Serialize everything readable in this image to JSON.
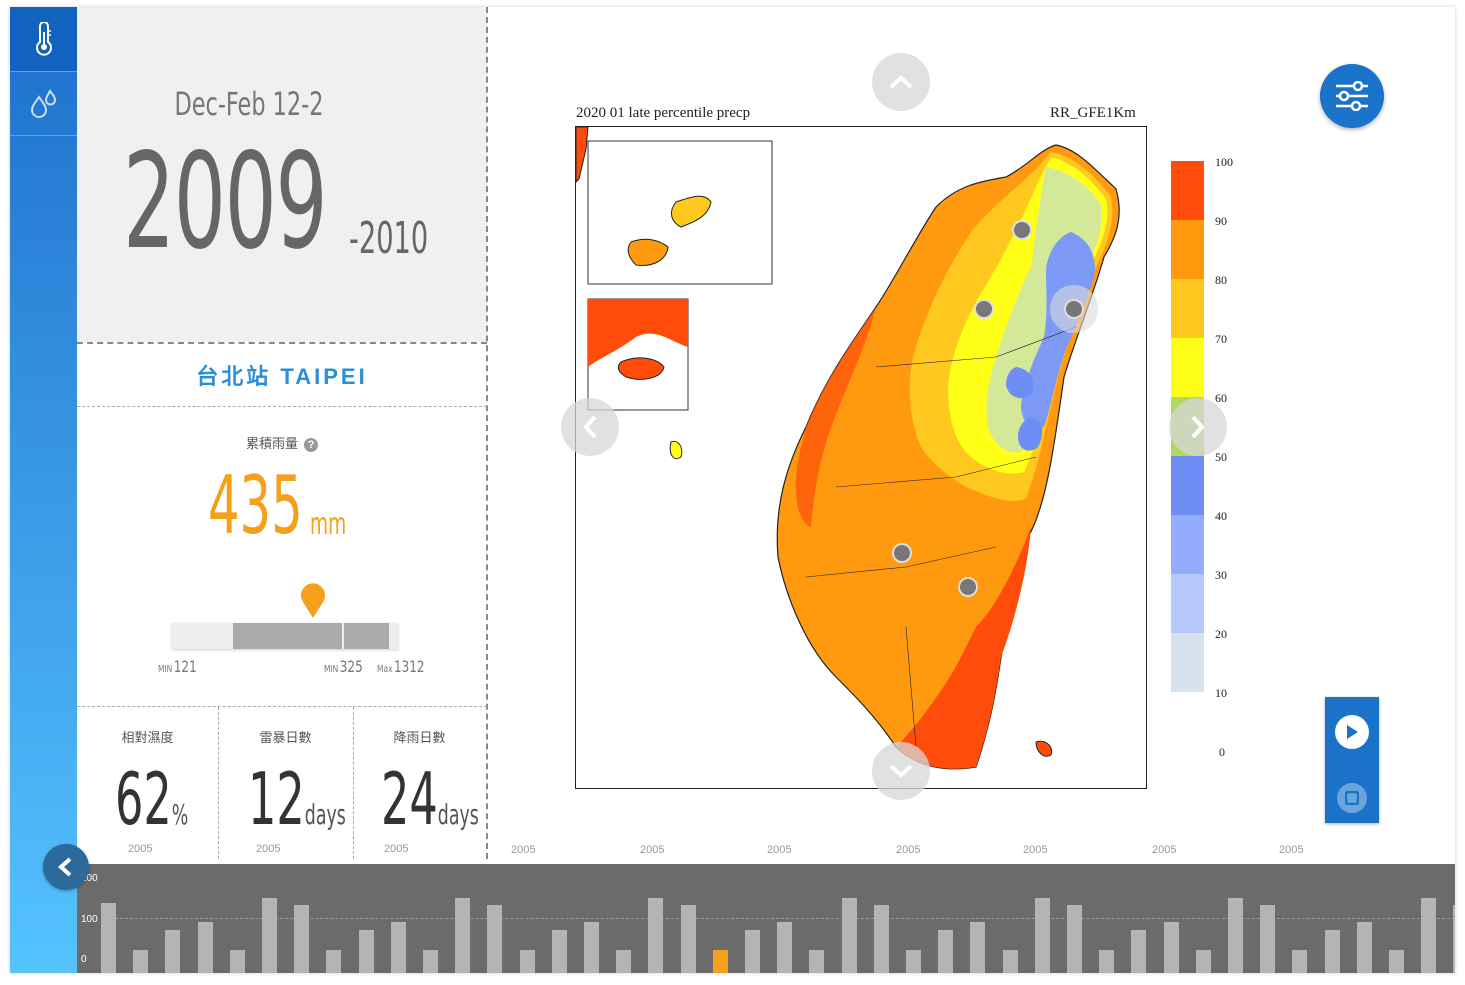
{
  "sidebar": {
    "items": [
      {
        "icon": "thermometer-icon"
      },
      {
        "icon": "raindrop-icon"
      }
    ]
  },
  "period": {
    "season": "Dec-Feb 12-2",
    "year_start": "2009",
    "year_end": "-2010"
  },
  "station": {
    "name": "台北站 TAIPEI"
  },
  "rainfall": {
    "label": "累積雨量",
    "value": "435",
    "unit": "mm",
    "min_label": "MIN",
    "min_value": "121",
    "mid_label": "MIN",
    "mid_value": "325",
    "max_label": "Max",
    "max_value": "1312"
  },
  "stats": [
    {
      "label": "相對濕度",
      "value": "62",
      "unit": "%",
      "year": "2005"
    },
    {
      "label": "雷暴日數",
      "value": "12",
      "unit": "days",
      "year": "2005"
    },
    {
      "label": "降雨日數",
      "value": "24",
      "unit": "days",
      "year": "2005"
    }
  ],
  "axis_years": [
    "2005",
    "2005",
    "2005",
    "2005",
    "2005",
    "2005",
    "2005"
  ],
  "map": {
    "title_left": "2020 01 late percentile precp",
    "title_right": "RR_GFE1Km",
    "legend_labels": [
      "100",
      "90",
      "80",
      "70",
      "60",
      "50",
      "40",
      "30",
      "20",
      "10",
      "0"
    ],
    "legend_colors": [
      "#ff4c0a",
      "#ff9a10",
      "#ffc81e",
      "#ffff18",
      "#b2d860",
      "#6e8ef6",
      "#93acfb",
      "#b7c8fc",
      "#d8e2ee"
    ]
  },
  "timeline": {
    "y_labels": [
      "200",
      "100",
      "0"
    ],
    "bars": [
      150,
      48,
      92,
      108,
      48,
      160,
      145,
      48,
      92,
      108,
      48,
      160,
      145,
      48,
      92,
      108,
      48,
      160,
      145,
      48,
      92,
      108,
      48,
      160,
      145,
      48,
      92,
      108,
      48,
      160,
      145,
      48,
      92,
      108,
      48,
      160,
      145,
      48,
      92,
      108,
      48,
      160,
      145
    ],
    "selected_index": 19
  }
}
